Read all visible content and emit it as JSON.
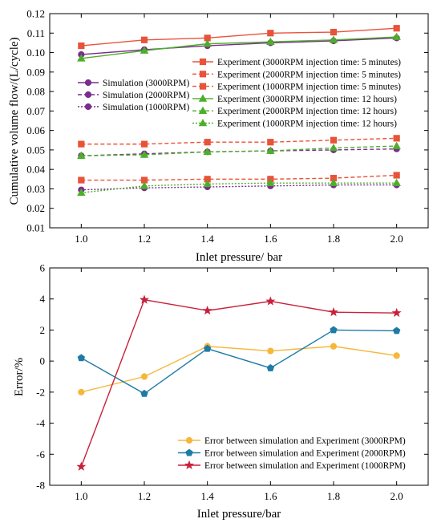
{
  "chart_data": [
    {
      "type": "line",
      "xlabel": "Inlet pressure/ bar",
      "ylabel": "Cumulative volume flow/(L/cycle)",
      "xlim": [
        0.9,
        2.1
      ],
      "ylim": [
        0.01,
        0.12
      ],
      "xticks": [
        1.0,
        1.2,
        1.4,
        1.6,
        1.8,
        2.0
      ],
      "yticks": [
        0.01,
        0.02,
        0.03,
        0.04,
        0.05,
        0.06,
        0.07,
        0.08,
        0.09,
        0.1,
        0.11,
        0.12
      ],
      "xtick_labels": [
        "1.0",
        "1.2",
        "1.4",
        "1.6",
        "1.8",
        "2.0"
      ],
      "ytick_labels": [
        "0.01",
        "0.02",
        "0.03",
        "0.04",
        "0.05",
        "0.06",
        "0.07",
        "0.08",
        "0.09",
        "0.10",
        "0.11",
        "0.12"
      ],
      "grid": false,
      "x": [
        1.0,
        1.2,
        1.4,
        1.6,
        1.8,
        2.0
      ],
      "series": [
        {
          "name": "Simulation (3000RPM)",
          "color": "#7B2D8E",
          "marker": "circle",
          "dash": "solid",
          "values": [
            0.099,
            0.1015,
            0.1035,
            0.105,
            0.106,
            0.1075
          ]
        },
        {
          "name": "Simulation (2000RPM)",
          "color": "#7B2D8E",
          "marker": "circle",
          "dash": "dashed",
          "values": [
            0.047,
            0.048,
            0.049,
            0.0495,
            0.05,
            0.0505
          ]
        },
        {
          "name": "Simulation (1000RPM)",
          "color": "#7B2D8E",
          "marker": "circle",
          "dash": "dotted",
          "values": [
            0.0295,
            0.0305,
            0.031,
            0.0315,
            0.032,
            0.032
          ]
        },
        {
          "name": "Experiment (3000RPM injection time: 5 minutes)",
          "color": "#E8533A",
          "marker": "square",
          "dash": "solid",
          "values": [
            0.1035,
            0.1065,
            0.1075,
            0.11,
            0.1105,
            0.1125
          ]
        },
        {
          "name": "Experiment (2000RPM injection time: 5 minutes)",
          "color": "#E8533A",
          "marker": "square",
          "dash": "dashed",
          "values": [
            0.053,
            0.053,
            0.054,
            0.054,
            0.055,
            0.056
          ]
        },
        {
          "name": "Experiment (1000RPM injection time: 5 minutes)",
          "color": "#E8533A",
          "marker": "square",
          "dash": "dashed",
          "values": [
            0.0345,
            0.0345,
            0.035,
            0.035,
            0.0355,
            0.037
          ]
        },
        {
          "name": "Experiment (3000RPM injection time: 12  hours)",
          "color": "#4CAF2A",
          "marker": "triangle",
          "dash": "solid",
          "values": [
            0.097,
            0.101,
            0.1045,
            0.1055,
            0.1065,
            0.108
          ]
        },
        {
          "name": "Experiment (2000RPM injection time: 12  hours)",
          "color": "#4CAF2A",
          "marker": "triangle",
          "dash": "dashed",
          "values": [
            0.047,
            0.0475,
            0.049,
            0.0495,
            0.051,
            0.052
          ]
        },
        {
          "name": "Experiment (1000RPM injection time: 12  hours)",
          "color": "#4CAF2A",
          "marker": "triangle",
          "dash": "dotted",
          "values": [
            0.028,
            0.0315,
            0.0325,
            0.033,
            0.033,
            0.033
          ]
        }
      ],
      "legends": [
        {
          "placement": "middle-left",
          "entries": [
            0,
            1,
            2
          ]
        },
        {
          "placement": "top-right",
          "entries": [
            3,
            4,
            5,
            6,
            7,
            8
          ]
        }
      ]
    },
    {
      "type": "line",
      "xlabel": "Inlet pressure/bar",
      "ylabel": "Error/%",
      "xlim": [
        0.9,
        2.1
      ],
      "ylim": [
        -8,
        6
      ],
      "xticks": [
        1.0,
        1.2,
        1.4,
        1.6,
        1.8,
        2.0
      ],
      "yticks": [
        -8,
        -6,
        -4,
        -2,
        0,
        2,
        4,
        6
      ],
      "xtick_labels": [
        "1.0",
        "1.2",
        "1.4",
        "1.6",
        "1.8",
        "2.0"
      ],
      "ytick_labels": [
        "-8",
        "-6",
        "-4",
        "-2",
        "0",
        "2",
        "4",
        "6"
      ],
      "grid": false,
      "x": [
        1.0,
        1.2,
        1.4,
        1.6,
        1.8,
        2.0
      ],
      "series": [
        {
          "name": "Error between simulation and Experiment (3000RPM)",
          "color": "#F5B73B",
          "marker": "circle",
          "dash": "solid",
          "values": [
            -2.0,
            -1.0,
            0.95,
            0.65,
            0.95,
            0.35
          ]
        },
        {
          "name": "Error between simulation and Experiment (2000RPM)",
          "color": "#1F7BA6",
          "marker": "pentagon",
          "dash": "solid",
          "values": [
            0.2,
            -2.1,
            0.8,
            -0.45,
            2.0,
            1.95
          ]
        },
        {
          "name": "Error between simulation and Experiment (1000RPM)",
          "color": "#C8213C",
          "marker": "star",
          "dash": "solid",
          "values": [
            -6.8,
            3.95,
            3.25,
            3.85,
            3.15,
            3.1
          ]
        }
      ],
      "legends": [
        {
          "placement": "bottom-right",
          "entries": [
            0,
            1,
            2
          ]
        }
      ]
    }
  ]
}
